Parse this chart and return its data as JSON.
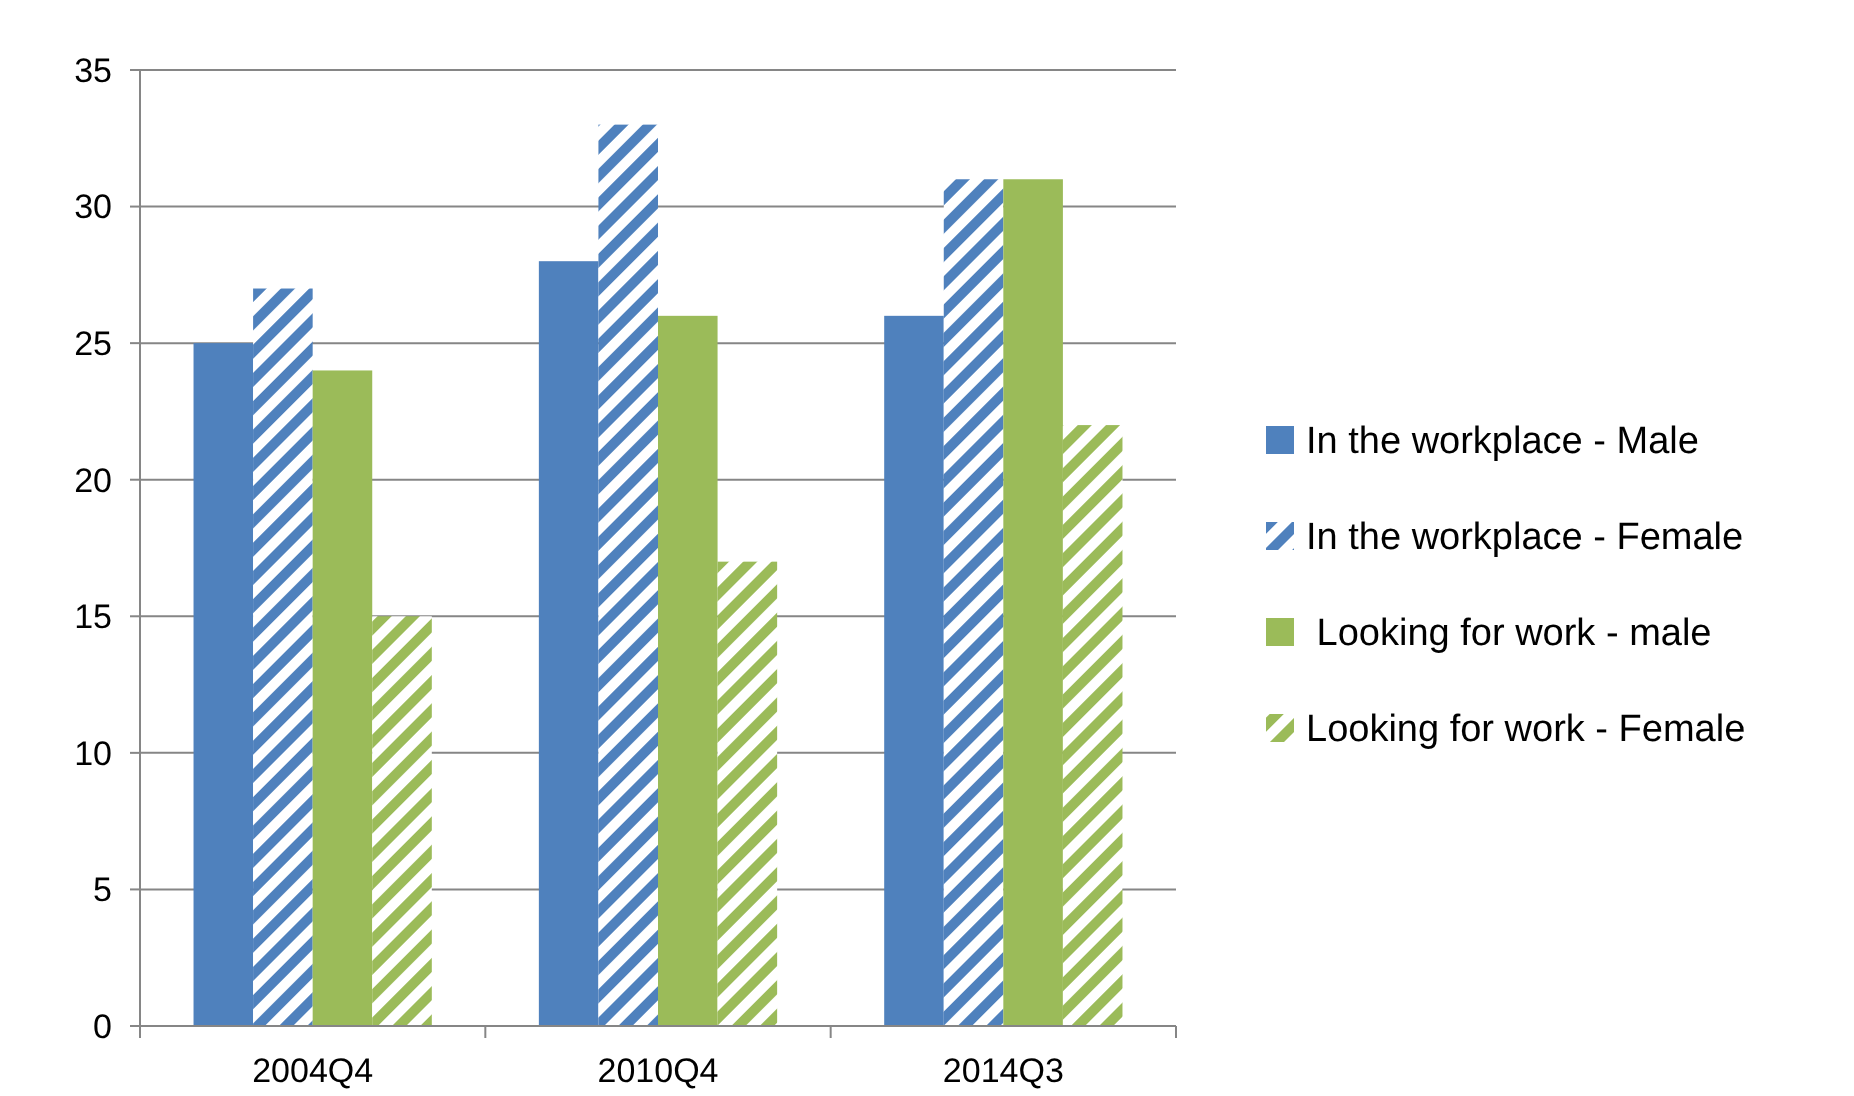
{
  "chart_data": {
    "type": "bar",
    "categories": [
      "2004Q4",
      "2010Q4",
      "2014Q3"
    ],
    "series": [
      {
        "name": "In the workplace - Male",
        "color": "#4f81bd",
        "values": [
          25,
          28,
          26
        ]
      },
      {
        "name": "In the workplace - Female",
        "color": "#4f81bd",
        "values": [
          27,
          33,
          31
        ]
      },
      {
        "name": " Looking for work - male",
        "color": "#9bbb59",
        "values": [
          24,
          26,
          31
        ]
      },
      {
        "name": "Looking for work - Female",
        "color": "#9bbb59",
        "values": [
          15,
          17,
          22
        ]
      }
    ],
    "ylim": [
      0,
      35
    ],
    "yticks": [
      0,
      5,
      10,
      15,
      20,
      25,
      30,
      35
    ],
    "grid": "y",
    "legend": "right"
  }
}
